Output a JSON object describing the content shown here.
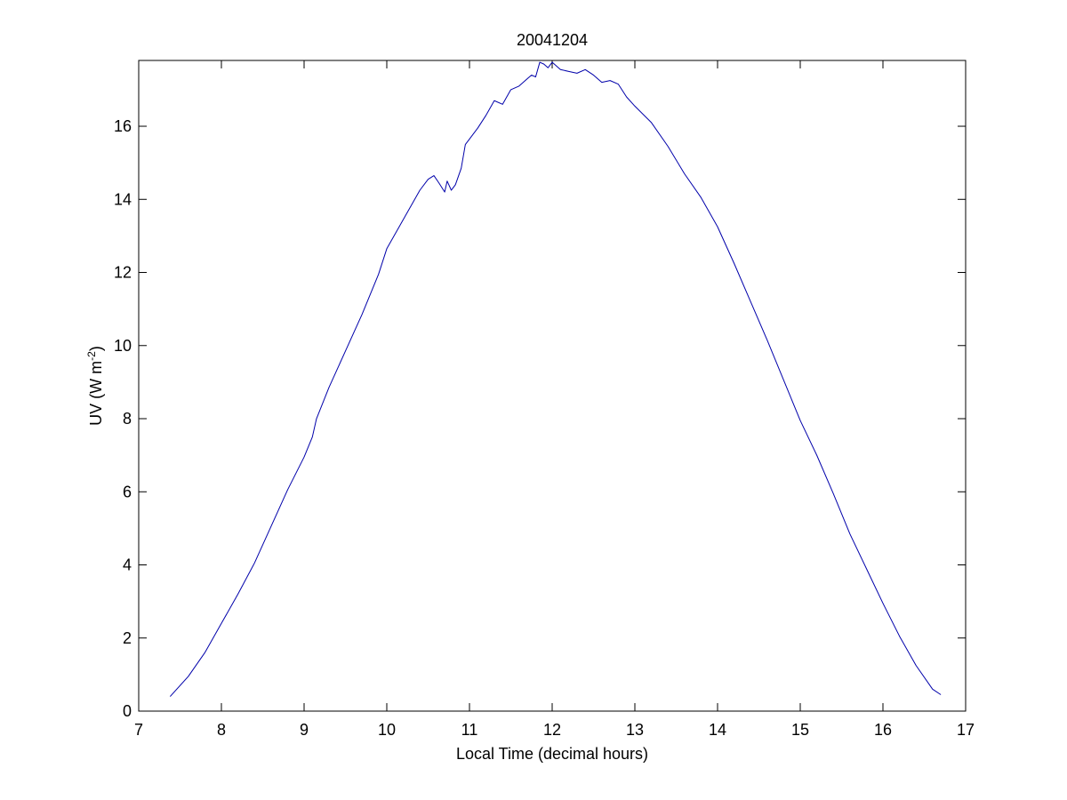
{
  "chart_data": {
    "type": "line",
    "title": "20041204",
    "xlabel": "Local Time (decimal hours)",
    "ylabel": "UV (W m",
    "ylabel_exponent": "-2",
    "ylabel_close": ")",
    "xlim": [
      7,
      17
    ],
    "ylim": [
      0,
      17.8
    ],
    "xticks": [
      7,
      8,
      9,
      10,
      11,
      12,
      13,
      14,
      15,
      16,
      17
    ],
    "yticks": [
      0,
      2,
      4,
      6,
      8,
      10,
      12,
      14,
      16
    ],
    "grid": false,
    "series": [
      {
        "color": "#0000aa",
        "x": [
          7.38,
          7.6,
          7.8,
          8.0,
          8.2,
          8.4,
          8.6,
          8.8,
          9.0,
          9.1,
          9.15,
          9.3,
          9.5,
          9.7,
          9.9,
          10.0,
          10.2,
          10.4,
          10.5,
          10.57,
          10.63,
          10.7,
          10.73,
          10.78,
          10.83,
          10.9,
          10.95,
          11.0,
          11.1,
          11.2,
          11.3,
          11.4,
          11.5,
          11.6,
          11.7,
          11.75,
          11.8,
          11.85,
          11.9,
          11.95,
          12.0,
          12.1,
          12.2,
          12.3,
          12.4,
          12.5,
          12.6,
          12.7,
          12.8,
          12.9,
          13.0,
          13.2,
          13.4,
          13.6,
          13.8,
          14.0,
          14.2,
          14.4,
          14.6,
          14.8,
          15.0,
          15.2,
          15.4,
          15.6,
          15.8,
          16.0,
          16.2,
          16.4,
          16.6,
          16.7
        ],
        "y": [
          0.4,
          0.95,
          1.6,
          2.4,
          3.2,
          4.05,
          5.05,
          6.05,
          6.95,
          7.5,
          8.0,
          8.85,
          9.85,
          10.85,
          11.95,
          12.65,
          13.45,
          14.25,
          14.55,
          14.65,
          14.45,
          14.2,
          14.5,
          14.25,
          14.4,
          14.85,
          15.5,
          15.65,
          15.95,
          16.3,
          16.7,
          16.6,
          17.0,
          17.1,
          17.3,
          17.4,
          17.35,
          17.75,
          17.7,
          17.6,
          17.75,
          17.55,
          17.5,
          17.45,
          17.55,
          17.4,
          17.2,
          17.25,
          17.15,
          16.8,
          16.55,
          16.1,
          15.45,
          14.7,
          14.05,
          13.25,
          12.25,
          11.2,
          10.15,
          9.05,
          7.95,
          7.0,
          5.95,
          4.85,
          3.9,
          2.95,
          2.05,
          1.25,
          0.6,
          0.45
        ]
      }
    ]
  }
}
